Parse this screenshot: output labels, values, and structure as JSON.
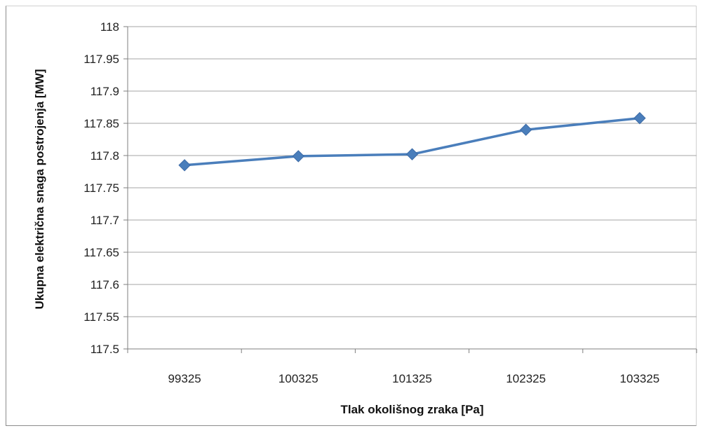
{
  "chart_data": {
    "type": "line",
    "title": "",
    "xlabel": "Tlak okolišnog zraka [Pa]",
    "ylabel": "Ukupna električna snaga postrojenja [MW]",
    "categories": [
      "99325",
      "100325",
      "101325",
      "102325",
      "103325"
    ],
    "series": [
      {
        "values": [
          117.785,
          117.799,
          117.802,
          117.84,
          117.858
        ]
      }
    ],
    "ylim": [
      117.5,
      118
    ],
    "yticks": [
      "117.5",
      "117.55",
      "117.6",
      "117.65",
      "117.7",
      "117.75",
      "117.8",
      "117.85",
      "117.9",
      "117.95",
      "118"
    ],
    "grid": true,
    "line_color": "#4a7ebb",
    "gridline_color": "#a6a6a6"
  }
}
